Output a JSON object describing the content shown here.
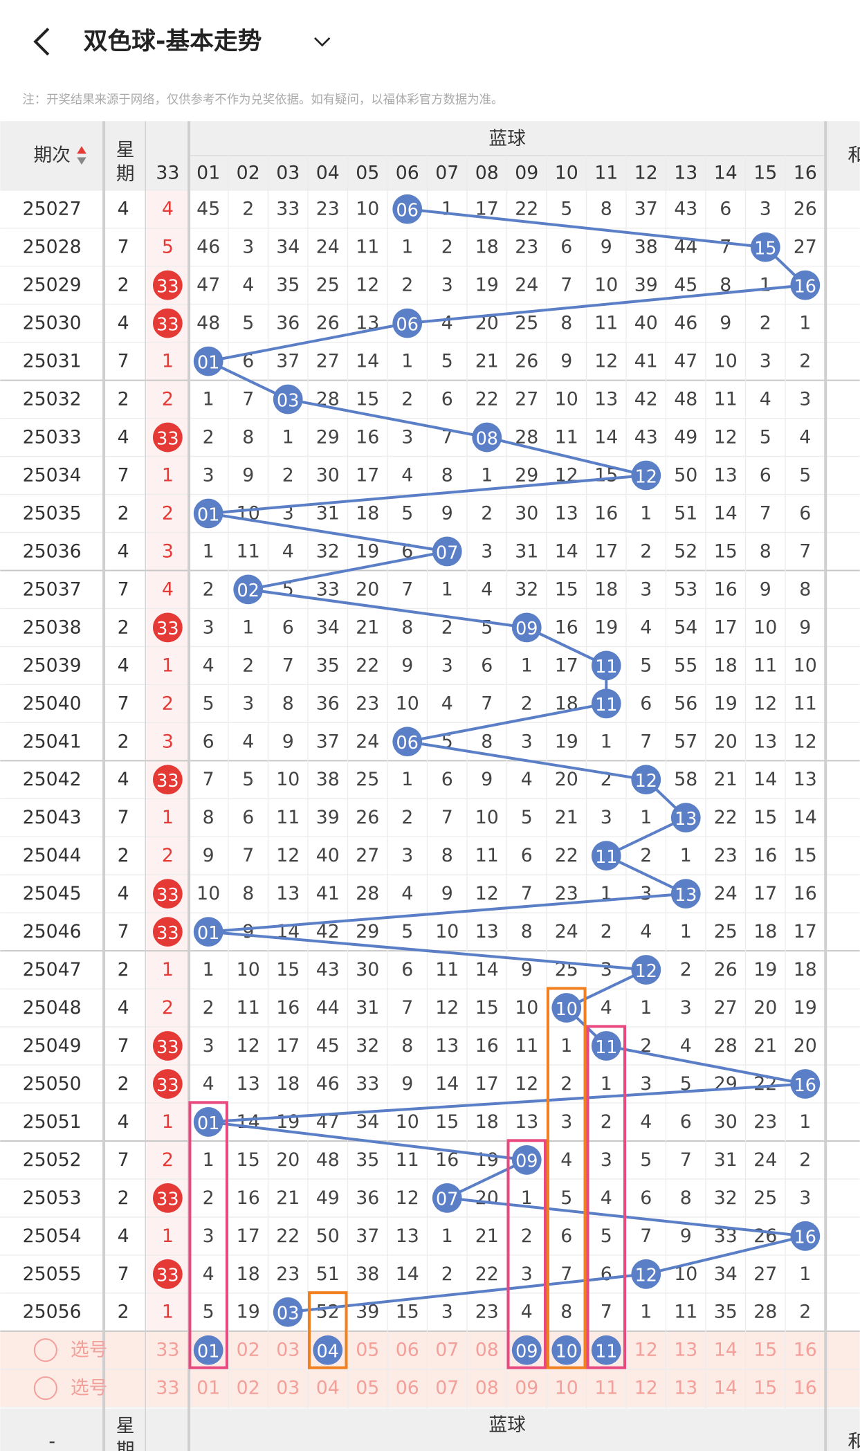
{
  "header": {
    "title": "双色球-基本走势",
    "note": "注：开奖结果来源于网络，仅供参考不作为兑奖依据。如有疑问，以福体彩官方数据为准。"
  },
  "table": {
    "headers": {
      "period": "期次",
      "week": "星期",
      "blue_group": "蓝球",
      "red_col": "33",
      "blue_cols": [
        "01",
        "02",
        "03",
        "04",
        "05",
        "06",
        "07",
        "08",
        "09",
        "10",
        "11",
        "12",
        "13",
        "14",
        "15",
        "16"
      ],
      "sum": "和"
    },
    "rows": [
      {
        "period": "25027",
        "week": "4",
        "red": "4",
        "cells": [
          "45",
          "2",
          "33",
          "23",
          "10",
          {
            "ball": "06"
          },
          "1",
          "17",
          "22",
          "5",
          "8",
          "37",
          "43",
          "6",
          "3",
          "26"
        ]
      },
      {
        "period": "25028",
        "week": "7",
        "red": "5",
        "cells": [
          "46",
          "3",
          "34",
          "24",
          "11",
          "1",
          "2",
          "18",
          "23",
          "6",
          "9",
          "38",
          "44",
          "7",
          {
            "ball": "15"
          },
          "27"
        ]
      },
      {
        "period": "25029",
        "week": "2",
        "red": {
          "ball": "33"
        },
        "cells": [
          "47",
          "4",
          "35",
          "25",
          "12",
          "2",
          "3",
          "19",
          "24",
          "7",
          "10",
          "39",
          "45",
          "8",
          "1",
          {
            "ball": "16"
          }
        ]
      },
      {
        "period": "25030",
        "week": "4",
        "red": {
          "ball": "33"
        },
        "cells": [
          "48",
          "5",
          "36",
          "26",
          "13",
          {
            "ball": "06"
          },
          "4",
          "20",
          "25",
          "8",
          "11",
          "40",
          "46",
          "9",
          "2",
          "1"
        ]
      },
      {
        "period": "25031",
        "week": "7",
        "red": "1",
        "cells": [
          {
            "ball": "01"
          },
          "6",
          "37",
          "27",
          "14",
          "1",
          "5",
          "21",
          "26",
          "9",
          "12",
          "41",
          "47",
          "10",
          "3",
          "2"
        ]
      },
      {
        "period": "25032",
        "week": "2",
        "red": "2",
        "cells": [
          "1",
          "7",
          {
            "ball": "03"
          },
          "28",
          "15",
          "2",
          "6",
          "22",
          "27",
          "10",
          "13",
          "42",
          "48",
          "11",
          "4",
          "3"
        ]
      },
      {
        "period": "25033",
        "week": "4",
        "red": {
          "ball": "33"
        },
        "cells": [
          "2",
          "8",
          "1",
          "29",
          "16",
          "3",
          "7",
          {
            "ball": "08"
          },
          "28",
          "11",
          "14",
          "43",
          "49",
          "12",
          "5",
          "4"
        ]
      },
      {
        "period": "25034",
        "week": "7",
        "red": "1",
        "cells": [
          "3",
          "9",
          "2",
          "30",
          "17",
          "4",
          "8",
          "1",
          "29",
          "12",
          "15",
          {
            "ball": "12"
          },
          "50",
          "13",
          "6",
          "5"
        ]
      },
      {
        "period": "25035",
        "week": "2",
        "red": "2",
        "cells": [
          {
            "ball": "01"
          },
          "10",
          "3",
          "31",
          "18",
          "5",
          "9",
          "2",
          "30",
          "13",
          "16",
          "1",
          "51",
          "14",
          "7",
          "6"
        ]
      },
      {
        "period": "25036",
        "week": "4",
        "red": "3",
        "cells": [
          "1",
          "11",
          "4",
          "32",
          "19",
          "6",
          {
            "ball": "07"
          },
          "3",
          "31",
          "14",
          "17",
          "2",
          "52",
          "15",
          "8",
          "7"
        ]
      },
      {
        "period": "25037",
        "week": "7",
        "red": "4",
        "cells": [
          "2",
          {
            "ball": "02"
          },
          "5",
          "33",
          "20",
          "7",
          "1",
          "4",
          "32",
          "15",
          "18",
          "3",
          "53",
          "16",
          "9",
          "8"
        ]
      },
      {
        "period": "25038",
        "week": "2",
        "red": {
          "ball": "33"
        },
        "cells": [
          "3",
          "1",
          "6",
          "34",
          "21",
          "8",
          "2",
          "5",
          {
            "ball": "09"
          },
          "16",
          "19",
          "4",
          "54",
          "17",
          "10",
          "9"
        ]
      },
      {
        "period": "25039",
        "week": "4",
        "red": "1",
        "cells": [
          "4",
          "2",
          "7",
          "35",
          "22",
          "9",
          "3",
          "6",
          "1",
          "17",
          {
            "ball": "11"
          },
          "5",
          "55",
          "18",
          "11",
          "10"
        ]
      },
      {
        "period": "25040",
        "week": "7",
        "red": "2",
        "cells": [
          "5",
          "3",
          "8",
          "36",
          "23",
          "10",
          "4",
          "7",
          "2",
          "18",
          {
            "ball": "11"
          },
          "6",
          "56",
          "19",
          "12",
          "11"
        ]
      },
      {
        "period": "25041",
        "week": "2",
        "red": "3",
        "cells": [
          "6",
          "4",
          "9",
          "37",
          "24",
          {
            "ball": "06"
          },
          "5",
          "8",
          "3",
          "19",
          "1",
          "7",
          "57",
          "20",
          "13",
          "12"
        ]
      },
      {
        "period": "25042",
        "week": "4",
        "red": {
          "ball": "33"
        },
        "cells": [
          "7",
          "5",
          "10",
          "38",
          "25",
          "1",
          "6",
          "9",
          "4",
          "20",
          "2",
          {
            "ball": "12"
          },
          "58",
          "21",
          "14",
          "13"
        ]
      },
      {
        "period": "25043",
        "week": "7",
        "red": "1",
        "cells": [
          "8",
          "6",
          "11",
          "39",
          "26",
          "2",
          "7",
          "10",
          "5",
          "21",
          "3",
          "1",
          {
            "ball": "13"
          },
          "22",
          "15",
          "14"
        ]
      },
      {
        "period": "25044",
        "week": "2",
        "red": "2",
        "cells": [
          "9",
          "7",
          "12",
          "40",
          "27",
          "3",
          "8",
          "11",
          "6",
          "22",
          {
            "ball": "11"
          },
          "2",
          "1",
          "23",
          "16",
          "15"
        ]
      },
      {
        "period": "25045",
        "week": "4",
        "red": {
          "ball": "33"
        },
        "cells": [
          "10",
          "8",
          "13",
          "41",
          "28",
          "4",
          "9",
          "12",
          "7",
          "23",
          "1",
          "3",
          {
            "ball": "13"
          },
          "24",
          "17",
          "16"
        ]
      },
      {
        "period": "25046",
        "week": "7",
        "red": {
          "ball": "33"
        },
        "cells": [
          {
            "ball": "01"
          },
          "9",
          "14",
          "42",
          "29",
          "5",
          "10",
          "13",
          "8",
          "24",
          "2",
          "4",
          "1",
          "25",
          "18",
          "17"
        ]
      },
      {
        "period": "25047",
        "week": "2",
        "red": "1",
        "cells": [
          "1",
          "10",
          "15",
          "43",
          "30",
          "6",
          "11",
          "14",
          "9",
          "25",
          "3",
          {
            "ball": "12"
          },
          "2",
          "26",
          "19",
          "18"
        ]
      },
      {
        "period": "25048",
        "week": "4",
        "red": "2",
        "cells": [
          "2",
          "11",
          "16",
          "44",
          "31",
          "7",
          "12",
          "15",
          "10",
          {
            "ball": "10"
          },
          "4",
          "1",
          "3",
          "27",
          "20",
          "19"
        ]
      },
      {
        "period": "25049",
        "week": "7",
        "red": {
          "ball": "33"
        },
        "cells": [
          "3",
          "12",
          "17",
          "45",
          "32",
          "8",
          "13",
          "16",
          "11",
          "1",
          {
            "ball": "11"
          },
          "2",
          "4",
          "28",
          "21",
          "20"
        ]
      },
      {
        "period": "25050",
        "week": "2",
        "red": {
          "ball": "33"
        },
        "cells": [
          "4",
          "13",
          "18",
          "46",
          "33",
          "9",
          "14",
          "17",
          "12",
          "2",
          "1",
          "3",
          "5",
          "29",
          "22",
          {
            "ball": "16"
          }
        ]
      },
      {
        "period": "25051",
        "week": "4",
        "red": "1",
        "cells": [
          {
            "ball": "01"
          },
          "14",
          "19",
          "47",
          "34",
          "10",
          "15",
          "18",
          "13",
          "3",
          "2",
          "4",
          "6",
          "30",
          "23",
          "1"
        ]
      },
      {
        "period": "25052",
        "week": "7",
        "red": "2",
        "cells": [
          "1",
          "15",
          "20",
          "48",
          "35",
          "11",
          "16",
          "19",
          {
            "ball": "09"
          },
          "4",
          "3",
          "5",
          "7",
          "31",
          "24",
          "2"
        ]
      },
      {
        "period": "25053",
        "week": "2",
        "red": {
          "ball": "33"
        },
        "cells": [
          "2",
          "16",
          "21",
          "49",
          "36",
          "12",
          {
            "ball": "07"
          },
          "20",
          "1",
          "5",
          "4",
          "6",
          "8",
          "32",
          "25",
          "3"
        ]
      },
      {
        "period": "25054",
        "week": "4",
        "red": "1",
        "cells": [
          "3",
          "17",
          "22",
          "50",
          "37",
          "13",
          "1",
          "21",
          "2",
          "6",
          "5",
          "7",
          "9",
          "33",
          "26",
          {
            "ball": "16"
          }
        ]
      },
      {
        "period": "25055",
        "week": "7",
        "red": {
          "ball": "33"
        },
        "cells": [
          "4",
          "18",
          "23",
          "51",
          "38",
          "14",
          "2",
          "22",
          "3",
          "7",
          "6",
          {
            "ball": "12"
          },
          "10",
          "34",
          "27",
          "1"
        ]
      },
      {
        "period": "25056",
        "week": "2",
        "red": "1",
        "cells": [
          "5",
          "19",
          {
            "ball": "03"
          },
          "52",
          "39",
          "15",
          "3",
          "23",
          "4",
          "8",
          "7",
          "1",
          "11",
          "35",
          "28",
          "2"
        ]
      }
    ],
    "select_rows": [
      {
        "label": "选号",
        "red": "33",
        "cells": [
          {
            "ball": "01"
          },
          "02",
          "03",
          {
            "ball": "04"
          },
          "05",
          "06",
          "07",
          "08",
          {
            "ball": "09"
          },
          {
            "ball": "10"
          },
          {
            "ball": "11"
          },
          "12",
          "13",
          "14",
          "15",
          "16"
        ]
      },
      {
        "label": "选号",
        "red": "33",
        "cells": [
          "01",
          "02",
          "03",
          "04",
          "05",
          "06",
          "07",
          "08",
          "09",
          "10",
          "11",
          "12",
          "13",
          "14",
          "15",
          "16"
        ]
      }
    ]
  },
  "footer": {
    "period": "-",
    "week": "星期",
    "blue_group": "蓝球",
    "sum": "和"
  }
}
